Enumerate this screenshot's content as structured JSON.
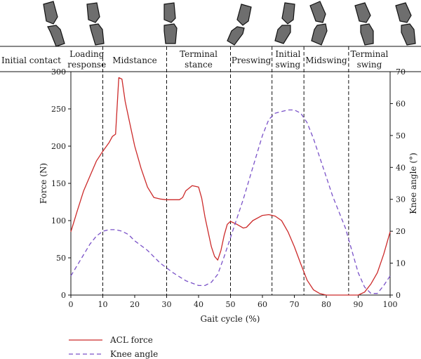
{
  "chart_data": {
    "type": "line",
    "xlabel": "Gait cycle (%)",
    "ylabel_left": "Force (N)",
    "ylabel_right": "Knee angle (°)",
    "xlim": [
      0,
      100
    ],
    "ylim_left": [
      0,
      300
    ],
    "ylim_right": [
      0,
      70
    ],
    "x_ticks": [
      0,
      10,
      20,
      30,
      40,
      50,
      60,
      70,
      80,
      90,
      100
    ],
    "y_left_ticks": [
      0,
      50,
      100,
      150,
      200,
      250,
      300
    ],
    "y_right_ticks": [
      0,
      10,
      20,
      30,
      40,
      50,
      60,
      70
    ],
    "phase_boundaries": [
      10,
      30,
      50,
      63,
      73,
      87
    ],
    "phases": [
      {
        "lines": [
          "Initial contact"
        ],
        "x": -5
      },
      {
        "lines": [
          "Loading",
          "response"
        ],
        "x": 5
      },
      {
        "lines": [
          "Midstance"
        ],
        "x": 20
      },
      {
        "lines": [
          "Terminal",
          "stance"
        ],
        "x": 40
      },
      {
        "lines": [
          "Preswing"
        ],
        "x": 56.5
      },
      {
        "lines": [
          "Initial",
          "swing"
        ],
        "x": 68
      },
      {
        "lines": [
          "Midswing"
        ],
        "x": 80
      },
      {
        "lines": [
          "Terminal",
          "swing"
        ],
        "x": 93.5
      }
    ],
    "series": [
      {
        "name": "ACL force",
        "axis": "left",
        "color": "#cc2a2a",
        "dash": "solid",
        "points": [
          [
            0,
            85
          ],
          [
            2,
            113
          ],
          [
            4,
            140
          ],
          [
            6,
            160
          ],
          [
            8,
            180
          ],
          [
            10,
            193
          ],
          [
            12,
            205
          ],
          [
            13,
            213
          ],
          [
            14,
            216
          ],
          [
            15,
            292
          ],
          [
            16,
            290
          ],
          [
            17,
            260
          ],
          [
            18,
            240
          ],
          [
            19,
            220
          ],
          [
            20,
            200
          ],
          [
            22,
            170
          ],
          [
            24,
            145
          ],
          [
            26,
            131
          ],
          [
            28,
            129
          ],
          [
            30,
            128
          ],
          [
            32,
            128
          ],
          [
            34,
            128
          ],
          [
            35,
            131
          ],
          [
            36,
            140
          ],
          [
            38,
            147
          ],
          [
            40,
            145
          ],
          [
            41,
            130
          ],
          [
            42,
            105
          ],
          [
            43,
            85
          ],
          [
            44,
            65
          ],
          [
            45,
            52
          ],
          [
            46,
            47
          ],
          [
            47,
            60
          ],
          [
            48,
            80
          ],
          [
            49,
            95
          ],
          [
            50,
            99
          ],
          [
            52,
            95
          ],
          [
            54,
            90
          ],
          [
            55,
            91
          ],
          [
            57,
            100
          ],
          [
            60,
            107
          ],
          [
            62,
            108
          ],
          [
            64,
            106
          ],
          [
            66,
            100
          ],
          [
            68,
            85
          ],
          [
            70,
            65
          ],
          [
            72,
            42
          ],
          [
            74,
            20
          ],
          [
            76,
            7
          ],
          [
            78,
            2
          ],
          [
            80,
            0
          ],
          [
            82,
            0
          ],
          [
            84,
            0
          ],
          [
            86,
            0
          ],
          [
            88,
            0
          ],
          [
            90,
            0
          ],
          [
            92,
            4
          ],
          [
            94,
            15
          ],
          [
            96,
            30
          ],
          [
            98,
            55
          ],
          [
            100,
            85
          ]
        ]
      },
      {
        "name": "Knee angle",
        "axis": "right",
        "color": "#7a52c8",
        "dash": "dashed",
        "points": [
          [
            0,
            6
          ],
          [
            3,
            11
          ],
          [
            6,
            16
          ],
          [
            8,
            18.5
          ],
          [
            10,
            20
          ],
          [
            12,
            20.5
          ],
          [
            14,
            20.5
          ],
          [
            16,
            20
          ],
          [
            18,
            19
          ],
          [
            20,
            17
          ],
          [
            24,
            14
          ],
          [
            28,
            10
          ],
          [
            32,
            7
          ],
          [
            36,
            4.5
          ],
          [
            40,
            3
          ],
          [
            42,
            3
          ],
          [
            44,
            4
          ],
          [
            46,
            6.5
          ],
          [
            48,
            12
          ],
          [
            50,
            18
          ],
          [
            54,
            30
          ],
          [
            57,
            40
          ],
          [
            60,
            50
          ],
          [
            62,
            55
          ],
          [
            64,
            57
          ],
          [
            66,
            57.5
          ],
          [
            68,
            58
          ],
          [
            70,
            58
          ],
          [
            72,
            57
          ],
          [
            74,
            54
          ],
          [
            76,
            49
          ],
          [
            78,
            43
          ],
          [
            80,
            37
          ],
          [
            82,
            31
          ],
          [
            84,
            26
          ],
          [
            86,
            21
          ],
          [
            88,
            14
          ],
          [
            90,
            7
          ],
          [
            92,
            2.5
          ],
          [
            94,
            0.5
          ],
          [
            96,
            0.5
          ],
          [
            98,
            3
          ],
          [
            100,
            6
          ]
        ]
      }
    ]
  }
}
